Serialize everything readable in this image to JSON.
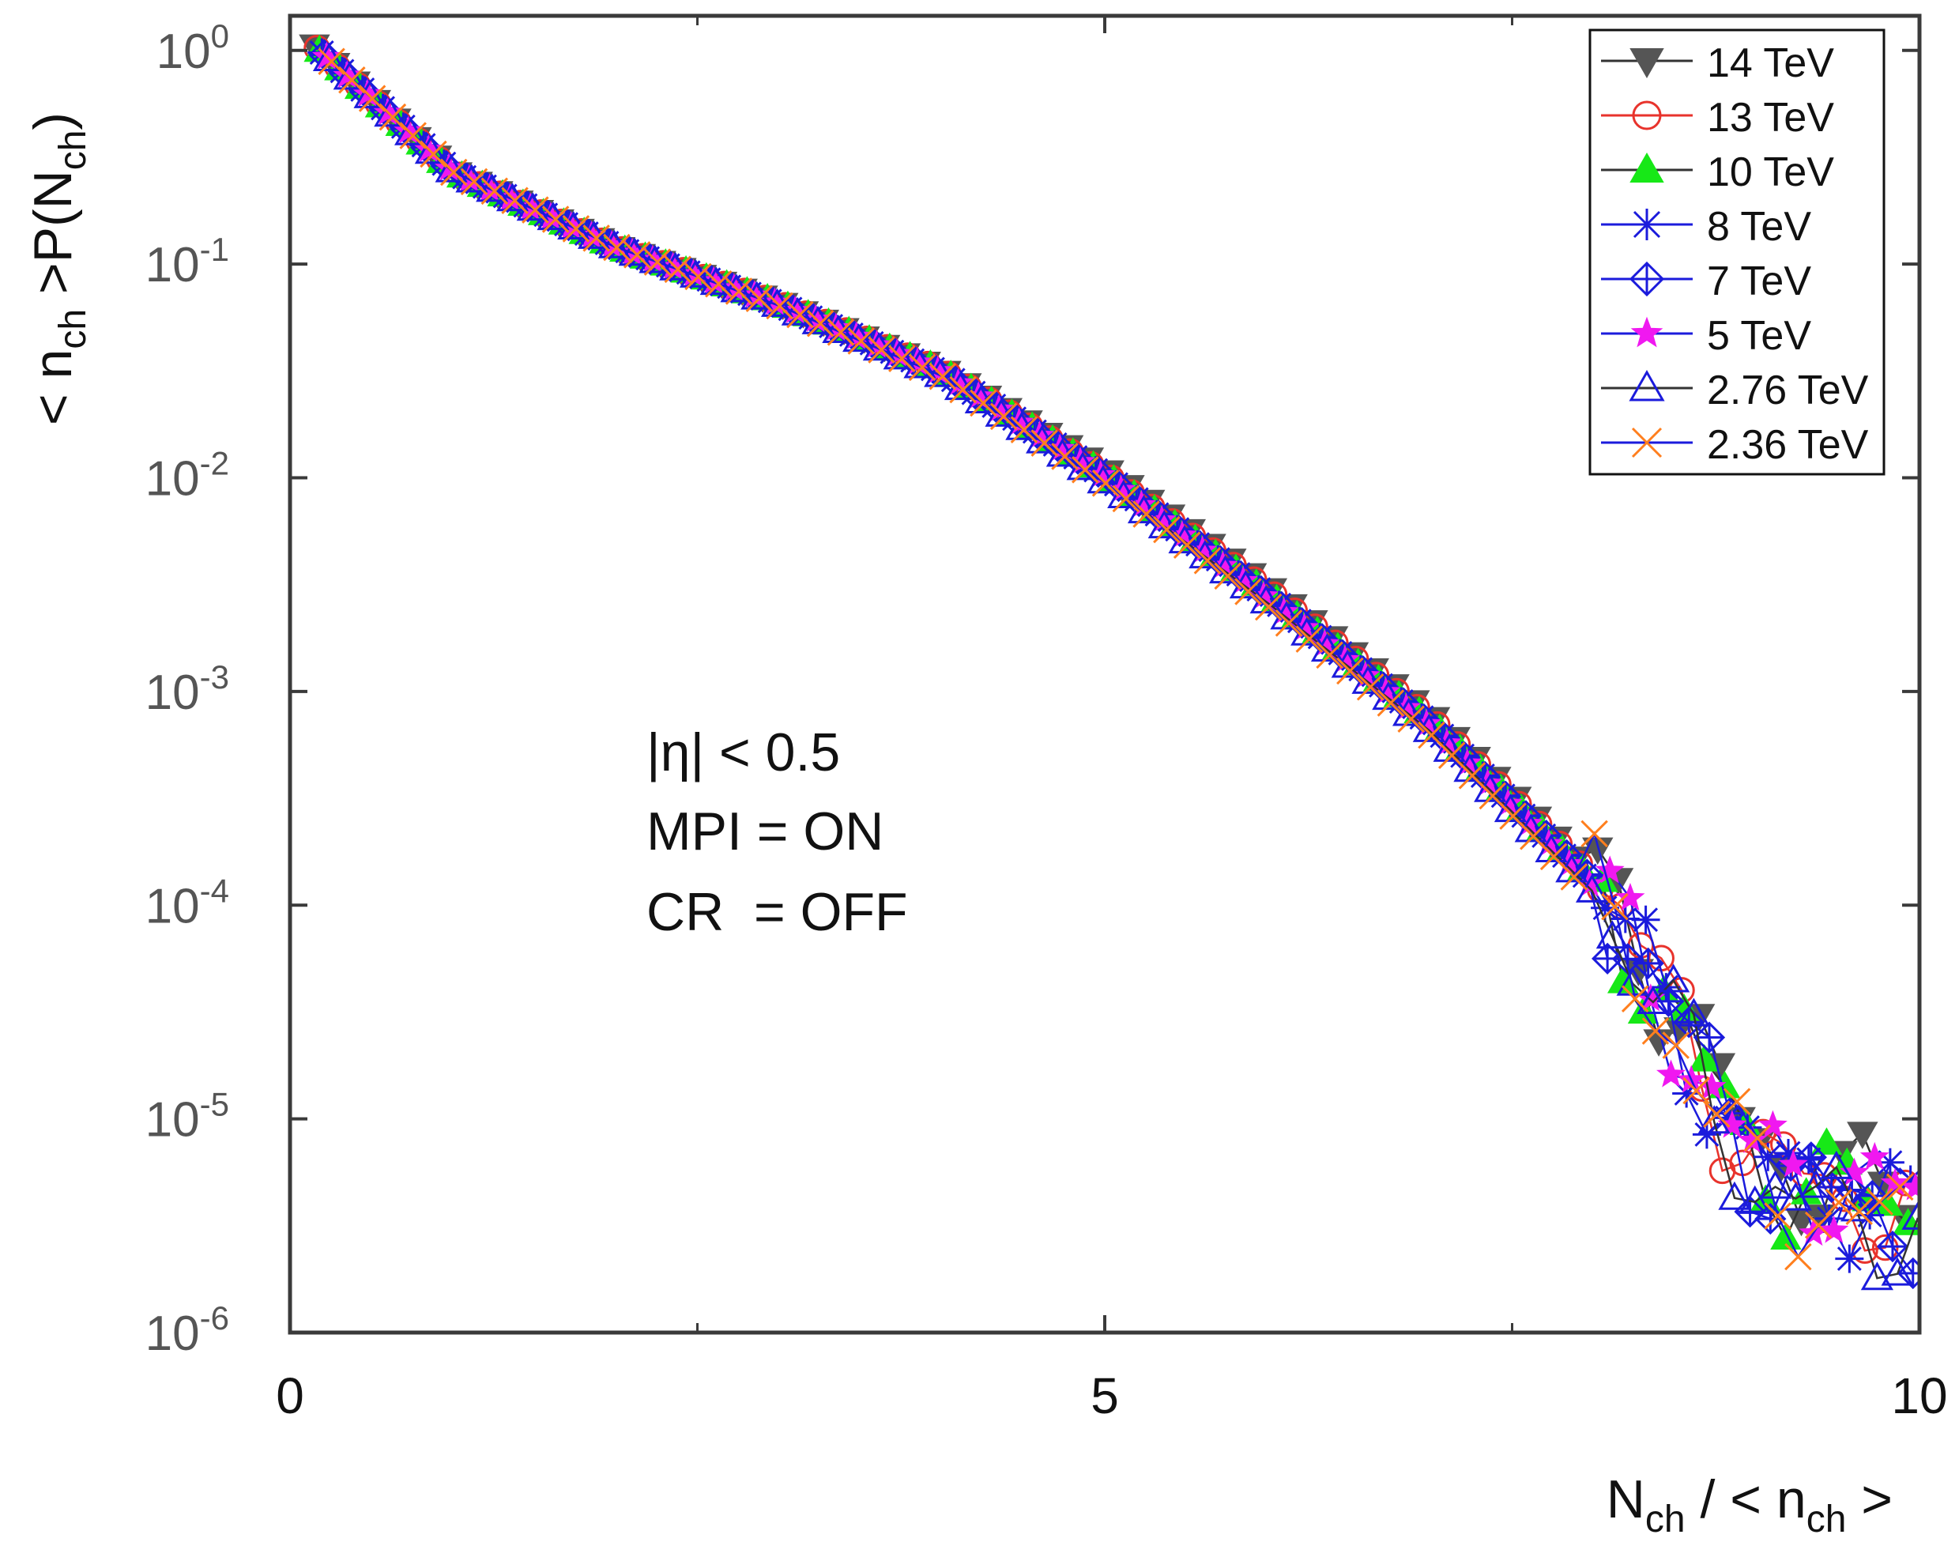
{
  "chart_data": {
    "type": "scatter",
    "title": "",
    "xlabel": {
      "main": "N",
      "sub": "ch",
      "rest": " / < n",
      "sub2": "ch",
      "rest2": " >"
    },
    "ylabel": {
      "pre": "< n",
      "sub": "ch",
      "mid": " >P(N",
      "sub2": "ch",
      "post": ")"
    },
    "xlim": [
      0,
      10
    ],
    "ylim": [
      1e-06,
      2
    ],
    "yscale": "log",
    "x_ticks": [
      {
        "value": 0,
        "label": "0"
      },
      {
        "value": 5,
        "label": "5"
      },
      {
        "value": 10,
        "label": "10"
      }
    ],
    "y_ticks": [
      {
        "value": 1,
        "base": "10",
        "exp": "0"
      },
      {
        "value": 0.1,
        "base": "10",
        "exp": "-1"
      },
      {
        "value": 0.01,
        "base": "10",
        "exp": "-2"
      },
      {
        "value": 0.001,
        "base": "10",
        "exp": "-3"
      },
      {
        "value": 0.0001,
        "base": "10",
        "exp": "-4"
      },
      {
        "value": 1e-05,
        "base": "10",
        "exp": "-5"
      },
      {
        "value": 1e-06,
        "base": "10",
        "exp": "-6"
      }
    ],
    "annotations": [
      "|η| < 0.5",
      "MPI = ON",
      "CR  = OFF"
    ],
    "legend_position": "top-right",
    "series": [
      {
        "name": "14 TeV",
        "marker": "triangle-down-filled",
        "color": "#555555",
        "line": "#333333",
        "offset": 0.0,
        "phase": 0.0,
        "points": [
          [
            0.15,
            1.05
          ],
          [
            1,
            0.27
          ],
          [
            2,
            0.12
          ],
          [
            3,
            0.066
          ],
          [
            4,
            0.032
          ],
          [
            5,
            0.011
          ],
          [
            6,
            0.0031
          ],
          [
            7,
            0.00078
          ],
          [
            8,
            0.00014
          ],
          [
            8.5,
            3.5e-05
          ],
          [
            8.8,
            1.2e-05
          ],
          [
            9,
            7e-06
          ],
          [
            9.5,
            5e-06
          ],
          [
            10,
            4e-06
          ]
        ]
      },
      {
        "name": "13 TeV",
        "marker": "circle-open",
        "color": "#e8332c",
        "line": "#e8332c",
        "offset": 0.015,
        "phase": 1.1,
        "points": [
          [
            0.15,
            1.05
          ],
          [
            1,
            0.27
          ],
          [
            2,
            0.12
          ],
          [
            3,
            0.066
          ],
          [
            4,
            0.032
          ],
          [
            5,
            0.0105
          ],
          [
            6,
            0.003
          ],
          [
            7,
            0.00075
          ],
          [
            8,
            0.000135
          ],
          [
            8.5,
            3.2e-05
          ],
          [
            8.8,
            1.1e-05
          ],
          [
            9,
            6e-06
          ],
          [
            9.5,
            4.5e-06
          ],
          [
            10,
            3.5e-06
          ]
        ]
      },
      {
        "name": "10 TeV",
        "marker": "triangle-up-filled",
        "color": "#17e817",
        "line": "#333333",
        "offset": 0.03,
        "phase": 2.3,
        "points": [
          [
            0.15,
            1.05
          ],
          [
            1,
            0.27
          ],
          [
            2,
            0.12
          ],
          [
            3,
            0.066
          ],
          [
            4,
            0.032
          ],
          [
            5,
            0.0105
          ],
          [
            6,
            0.0029
          ],
          [
            7,
            0.00073
          ],
          [
            8,
            0.00013
          ],
          [
            8.5,
            3e-05
          ],
          [
            8.8,
            1.1e-05
          ],
          [
            9,
            6e-06
          ],
          [
            9.5,
            4.5e-06
          ],
          [
            10,
            3.5e-06
          ]
        ]
      },
      {
        "name": "8 TeV",
        "marker": "asterisk",
        "color": "#1b1bdc",
        "line": "#1b1bdc",
        "offset": 0.045,
        "phase": 3.4,
        "points": [
          [
            0.15,
            1.05
          ],
          [
            1,
            0.27
          ],
          [
            2,
            0.12
          ],
          [
            3,
            0.065
          ],
          [
            4,
            0.031
          ],
          [
            5,
            0.0102
          ],
          [
            6,
            0.0028
          ],
          [
            7,
            0.0007
          ],
          [
            8,
            0.000125
          ],
          [
            8.5,
            2.9e-05
          ],
          [
            8.8,
            1e-05
          ],
          [
            9,
            6e-06
          ],
          [
            9.5,
            4.5e-06
          ],
          [
            10,
            3.5e-06
          ]
        ]
      },
      {
        "name": "7 TeV",
        "marker": "diamond-open",
        "color": "#1b1bdc",
        "line": "#1b1bdc",
        "offset": 0.06,
        "phase": 4.6,
        "points": [
          [
            0.15,
            1.05
          ],
          [
            1,
            0.27
          ],
          [
            2,
            0.12
          ],
          [
            3,
            0.065
          ],
          [
            4,
            0.031
          ],
          [
            5,
            0.0102
          ],
          [
            6,
            0.0028
          ],
          [
            7,
            0.0007
          ],
          [
            8,
            0.00013
          ],
          [
            8.5,
            3e-05
          ],
          [
            8.8,
            1.1e-05
          ],
          [
            9,
            6e-06
          ],
          [
            9.5,
            4e-06
          ],
          [
            10,
            3.5e-06
          ]
        ]
      },
      {
        "name": "5 TeV",
        "marker": "star-filled",
        "color": "#f018f0",
        "line": "#1b1bdc",
        "offset": 0.075,
        "phase": 5.7,
        "points": [
          [
            0.15,
            1.05
          ],
          [
            1,
            0.27
          ],
          [
            2,
            0.12
          ],
          [
            3,
            0.065
          ],
          [
            4,
            0.031
          ],
          [
            5,
            0.01
          ],
          [
            6,
            0.0027
          ],
          [
            7,
            0.00068
          ],
          [
            8,
            0.00012
          ],
          [
            8.5,
            2.7e-05
          ],
          [
            8.8,
            1e-05
          ],
          [
            9,
            6e-06
          ],
          [
            9.5,
            5e-06
          ],
          [
            10,
            4e-06
          ]
        ]
      },
      {
        "name": "2.76 TeV",
        "marker": "triangle-up-open",
        "color": "#1b1bdc",
        "line": "#333333",
        "offset": 0.09,
        "phase": 0.7,
        "points": [
          [
            0.15,
            1.05
          ],
          [
            1,
            0.27
          ],
          [
            2,
            0.12
          ],
          [
            3,
            0.064
          ],
          [
            4,
            0.03
          ],
          [
            5,
            0.0095
          ],
          [
            6,
            0.0026
          ],
          [
            7,
            0.00065
          ],
          [
            8,
            0.000115
          ],
          [
            8.5,
            2.6e-05
          ],
          [
            8.8,
            9e-06
          ],
          [
            9,
            5e-06
          ],
          [
            9.5,
            3.5e-06
          ],
          [
            10,
            3e-06
          ]
        ]
      },
      {
        "name": "2.36 TeV",
        "marker": "cross",
        "color": "#ff7f1e",
        "line": "#1b1bdc",
        "offset": 0.105,
        "phase": 1.9,
        "points": [
          [
            0.15,
            1.05
          ],
          [
            1,
            0.27
          ],
          [
            2,
            0.12
          ],
          [
            3,
            0.064
          ],
          [
            4,
            0.03
          ],
          [
            5,
            0.0095
          ],
          [
            6,
            0.0025
          ],
          [
            7,
            0.00063
          ],
          [
            8,
            0.00011
          ],
          [
            8.5,
            2.5e-05
          ],
          [
            8.8,
            9e-06
          ],
          [
            9,
            5e-06
          ],
          [
            9.5,
            3.5e-06
          ],
          [
            10,
            3e-06
          ]
        ]
      }
    ]
  }
}
